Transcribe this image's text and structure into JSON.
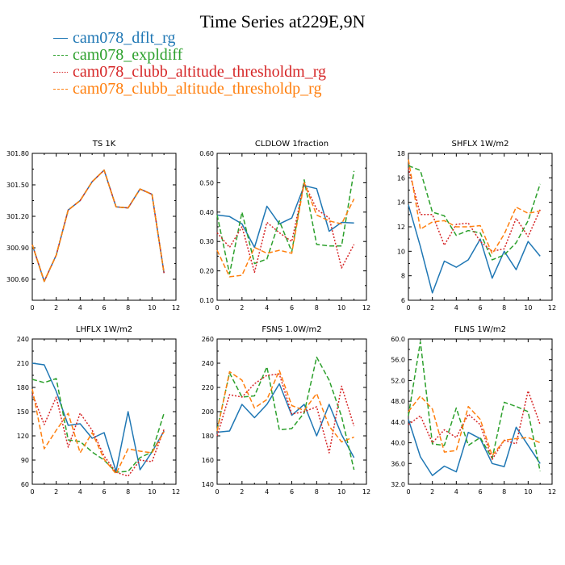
{
  "title": "Time Series at229E,9N",
  "legend": [
    {
      "name": "cam078_dflt_rg",
      "color": "#1f77b4",
      "dash": "solid"
    },
    {
      "name": "cam078_expldiff",
      "color": "#2ca02c",
      "dash": "dashed"
    },
    {
      "name": "cam078_clubb_altitude_thresholdm_rg",
      "color": "#d62728",
      "dash": "dotted"
    },
    {
      "name": "cam078_clubb_altitude_thresholdp_rg",
      "color": "#ff7f0e",
      "dash": "dashed"
    }
  ],
  "chart_data": [
    {
      "type": "line",
      "title": "TS   1K",
      "xlim": [
        0,
        12
      ],
      "xticks": [
        0,
        2,
        4,
        6,
        8,
        10,
        12
      ],
      "ylim": [
        300.4,
        301.8
      ],
      "yticks": [
        300.6,
        300.9,
        301.2,
        301.5,
        301.8
      ],
      "ytick_labels": [
        "300.60",
        "300.90",
        "301.20",
        "301.50",
        "301.80"
      ],
      "x": [
        0,
        1,
        2,
        3,
        4,
        5,
        6,
        7,
        8,
        9,
        10,
        11
      ],
      "series": [
        {
          "name": "cam078_dflt_rg",
          "values": [
            300.93,
            300.58,
            300.83,
            301.26,
            301.35,
            301.53,
            301.64,
            301.29,
            301.28,
            301.46,
            301.41,
            300.66
          ]
        },
        {
          "name": "cam078_expldiff",
          "values": [
            300.93,
            300.58,
            300.83,
            301.26,
            301.35,
            301.53,
            301.64,
            301.29,
            301.28,
            301.46,
            301.41,
            300.66
          ]
        },
        {
          "name": "cam078_clubb_altitude_thresholdm_rg",
          "values": [
            300.93,
            300.58,
            300.83,
            301.26,
            301.35,
            301.53,
            301.64,
            301.29,
            301.28,
            301.46,
            301.41,
            300.66
          ]
        },
        {
          "name": "cam078_clubb_altitude_thresholdp_rg",
          "values": [
            300.93,
            300.58,
            300.83,
            301.26,
            301.35,
            301.53,
            301.64,
            301.29,
            301.28,
            301.46,
            301.41,
            300.66
          ]
        }
      ]
    },
    {
      "type": "line",
      "title": "CLDLOW   1fraction",
      "xlim": [
        0,
        12
      ],
      "xticks": [
        0,
        2,
        4,
        6,
        8,
        10,
        12
      ],
      "ylim": [
        0.1,
        0.6
      ],
      "yticks": [
        0.1,
        0.2,
        0.3,
        0.4,
        0.5,
        0.6
      ],
      "ytick_labels": [
        "0.10",
        "0.20",
        "0.30",
        "0.40",
        "0.50",
        "0.60"
      ],
      "x": [
        0,
        1,
        2,
        3,
        4,
        5,
        6,
        7,
        8,
        9,
        10,
        11
      ],
      "series": [
        {
          "name": "cam078_dflt_rg",
          "values": [
            0.39,
            0.385,
            0.36,
            0.28,
            0.42,
            0.36,
            0.38,
            0.49,
            0.48,
            0.335,
            0.365,
            0.363
          ]
        },
        {
          "name": "cam078_expldiff",
          "values": [
            0.39,
            0.19,
            0.4,
            0.225,
            0.24,
            0.37,
            0.265,
            0.51,
            0.29,
            0.285,
            0.285,
            0.54
          ]
        },
        {
          "name": "cam078_clubb_altitude_thresholdm_rg",
          "values": [
            0.33,
            0.28,
            0.35,
            0.195,
            0.365,
            0.33,
            0.3,
            0.5,
            0.41,
            0.38,
            0.21,
            0.29
          ]
        },
        {
          "name": "cam078_clubb_altitude_thresholdp_rg",
          "values": [
            0.27,
            0.18,
            0.185,
            0.28,
            0.26,
            0.27,
            0.26,
            0.5,
            0.39,
            0.37,
            0.36,
            0.445
          ]
        }
      ]
    },
    {
      "type": "line",
      "title": "SHFLX   1W/m2",
      "xlim": [
        0,
        12
      ],
      "xticks": [
        0,
        2,
        4,
        6,
        8,
        10,
        12
      ],
      "ylim": [
        6,
        18
      ],
      "yticks": [
        6,
        8,
        10,
        12,
        14,
        16,
        18
      ],
      "ytick_labels": [
        "6",
        "8",
        "10",
        "12",
        "14",
        "16",
        "18"
      ],
      "x": [
        0,
        1,
        2,
        3,
        4,
        5,
        6,
        7,
        8,
        9,
        10,
        11
      ],
      "series": [
        {
          "name": "cam078_dflt_rg",
          "values": [
            13.8,
            10.4,
            6.6,
            9.2,
            8.7,
            9.3,
            11.0,
            7.8,
            10.0,
            8.5,
            10.8,
            9.6
          ]
        },
        {
          "name": "cam078_expldiff",
          "values": [
            17.0,
            16.6,
            13.2,
            12.9,
            11.3,
            11.7,
            11.5,
            9.3,
            9.7,
            10.7,
            12.5,
            15.5
          ]
        },
        {
          "name": "cam078_clubb_altitude_thresholdm_rg",
          "values": [
            16.8,
            13.0,
            13.0,
            10.5,
            12.2,
            12.3,
            10.8,
            10.0,
            10.2,
            12.7,
            11.2,
            13.4
          ]
        },
        {
          "name": "cam078_clubb_altitude_thresholdp_rg",
          "values": [
            17.5,
            11.8,
            12.4,
            12.5,
            12.0,
            12.0,
            12.1,
            9.8,
            11.4,
            13.6,
            13.1,
            13.3
          ]
        }
      ]
    },
    {
      "type": "line",
      "title": "LHFLX   1W/m2",
      "xlim": [
        0,
        12
      ],
      "xticks": [
        0,
        2,
        4,
        6,
        8,
        10,
        12
      ],
      "ylim": [
        60,
        240
      ],
      "yticks": [
        60,
        90,
        120,
        150,
        180,
        210,
        240
      ],
      "ytick_labels": [
        "60",
        "90",
        "120",
        "150",
        "180",
        "210",
        "240"
      ],
      "x": [
        0,
        1,
        2,
        3,
        4,
        5,
        6,
        7,
        8,
        9,
        10,
        11
      ],
      "series": [
        {
          "name": "cam078_dflt_rg",
          "values": [
            210,
            208,
            175,
            133,
            135,
            117,
            124,
            76,
            150,
            78,
            100,
            126
          ]
        },
        {
          "name": "cam078_expldiff",
          "values": [
            190,
            186,
            191,
            115,
            113,
            100,
            90,
            75,
            76,
            93,
            100,
            148
          ]
        },
        {
          "name": "cam078_clubb_altitude_thresholdm_rg",
          "values": [
            172,
            134,
            168,
            106,
            148,
            127,
            95,
            75,
            70,
            90,
            88,
            128
          ]
        },
        {
          "name": "cam078_clubb_altitude_thresholdp_rg",
          "values": [
            178,
            104,
            127,
            148,
            99,
            124,
            91,
            73,
            104,
            101,
            99,
            125
          ]
        }
      ]
    },
    {
      "type": "line",
      "title": "FSNS   1.0W/m2",
      "xlim": [
        0,
        12
      ],
      "xticks": [
        0,
        2,
        4,
        6,
        8,
        10,
        12
      ],
      "ylim": [
        140,
        260
      ],
      "yticks": [
        140,
        160,
        180,
        200,
        220,
        240,
        260
      ],
      "ytick_labels": [
        "140",
        "160",
        "180",
        "200",
        "220",
        "240",
        "260"
      ],
      "x": [
        0,
        1,
        2,
        3,
        4,
        5,
        6,
        7,
        8,
        9,
        10,
        11
      ],
      "series": [
        {
          "name": "cam078_dflt_rg",
          "values": [
            183,
            184,
            206,
            195,
            206,
            223,
            197,
            206,
            180,
            206,
            181,
            162
          ]
        },
        {
          "name": "cam078_expldiff",
          "values": [
            185,
            232,
            212,
            213,
            237,
            185,
            186,
            199,
            245,
            226,
            196,
            152
          ]
        },
        {
          "name": "cam078_clubb_altitude_thresholdm_rg",
          "values": [
            180,
            214,
            212,
            223,
            230,
            231,
            198,
            200,
            204,
            166,
            221,
            188
          ]
        },
        {
          "name": "cam078_clubb_altitude_thresholdp_rg",
          "values": [
            184,
            233,
            226,
            203,
            210,
            234,
            205,
            201,
            215,
            188,
            175,
            179
          ]
        }
      ]
    },
    {
      "type": "line",
      "title": "FLNS   1W/m2",
      "xlim": [
        0,
        12
      ],
      "xticks": [
        0,
        2,
        4,
        6,
        8,
        10,
        12
      ],
      "ylim": [
        32,
        60
      ],
      "yticks": [
        32,
        36,
        40,
        44,
        48,
        52,
        56,
        60
      ],
      "ytick_labels": [
        "32.0",
        "36.0",
        "40.0",
        "44.0",
        "48.0",
        "52.0",
        "56.0",
        "60.0"
      ],
      "x": [
        0,
        1,
        2,
        3,
        4,
        5,
        6,
        7,
        8,
        9,
        10,
        11
      ],
      "series": [
        {
          "name": "cam078_dflt_rg",
          "values": [
            44.5,
            37.3,
            33.7,
            35.5,
            34.4,
            42.0,
            40.8,
            36.0,
            35.4,
            43.0,
            39.5,
            36.0
          ]
        },
        {
          "name": "cam078_expldiff",
          "values": [
            45.2,
            59.5,
            39.8,
            39.5,
            46.7,
            39.5,
            41.0,
            37.0,
            47.8,
            47.0,
            46.0,
            34.5
          ]
        },
        {
          "name": "cam078_clubb_altitude_thresholdm_rg",
          "values": [
            43.5,
            45.2,
            40.0,
            42.5,
            41.0,
            45.5,
            43.5,
            36.8,
            40.5,
            39.8,
            50.0,
            43.5
          ]
        },
        {
          "name": "cam078_clubb_altitude_thresholdp_rg",
          "values": [
            46.0,
            49.0,
            46.5,
            38.2,
            38.5,
            47.0,
            44.5,
            37.5,
            40.5,
            40.8,
            41.0,
            40.0
          ]
        }
      ]
    }
  ]
}
